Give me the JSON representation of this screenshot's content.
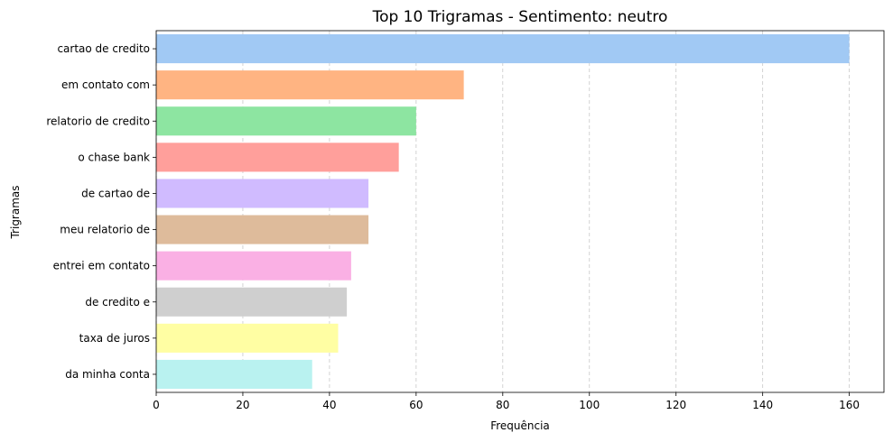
{
  "chart_data": {
    "type": "bar",
    "orientation": "horizontal",
    "title": "Top 10 Trigramas - Sentimento: neutro",
    "xlabel": "Frequência",
    "ylabel": "Trigramas",
    "xlim": [
      0,
      168
    ],
    "xticks": [
      0,
      20,
      40,
      60,
      80,
      100,
      120,
      140,
      160
    ],
    "grid": "x-dashed",
    "categories": [
      "cartao de credito",
      "em contato com",
      "relatorio de credito",
      "o chase bank",
      "de cartao de",
      "meu relatorio de",
      "entrei em contato",
      "de credito e",
      "taxa de juros",
      "da minha conta"
    ],
    "values": [
      160,
      71,
      60,
      56,
      49,
      49,
      45,
      44,
      42,
      36
    ],
    "colors": [
      "#a1c9f4",
      "#ffb482",
      "#8de5a1",
      "#ff9f9b",
      "#d0bbff",
      "#debb9b",
      "#fab0e4",
      "#cfcfcf",
      "#fffea3",
      "#b9f2f0"
    ]
  }
}
